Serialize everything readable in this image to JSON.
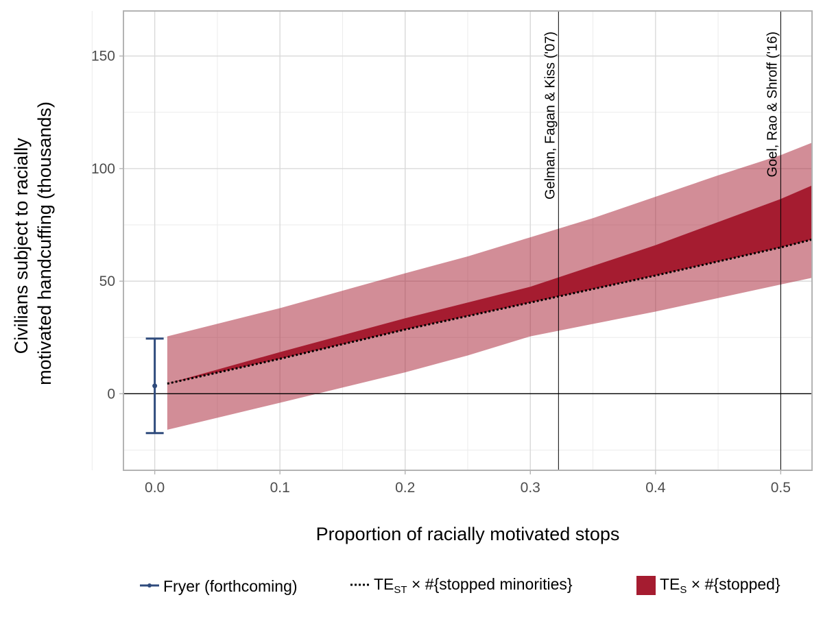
{
  "chart_data": {
    "type": "area",
    "title": "",
    "xlabel": "Proportion of racially motivated stops",
    "ylabel_lines": [
      "Civilians subject to racially",
      "motivated handcuffing (thousands)"
    ],
    "xlim": [
      -0.025,
      0.525
    ],
    "ylim": [
      -34,
      170
    ],
    "xticks": [
      0.0,
      0.1,
      0.2,
      0.3,
      0.4,
      0.5
    ],
    "xtick_labels": [
      "0.0",
      "0.1",
      "0.2",
      "0.3",
      "0.4",
      "0.5"
    ],
    "yticks": [
      0,
      50,
      100,
      150
    ],
    "ytick_labels": [
      "0",
      "50",
      "100",
      "150"
    ],
    "grid": true,
    "zero_line": 0,
    "series": [
      {
        "name": "TE_S × #{stopped}",
        "kind": "ribbon-outer",
        "color": "#a51c30",
        "opacity": 0.5,
        "x": [
          0.01,
          0.1,
          0.2,
          0.25,
          0.3,
          0.35,
          0.4,
          0.45,
          0.5,
          0.525
        ],
        "lower": [
          -16,
          -4,
          9.5,
          17,
          25.5,
          31,
          36.5,
          42.5,
          48.5,
          51.5
        ],
        "upper": [
          25.5,
          38,
          53.5,
          61,
          69.5,
          78,
          87.5,
          97,
          106,
          111.5
        ]
      },
      {
        "name": "TE_S × #{stopped}",
        "kind": "ribbon-inner",
        "color": "#a51c30",
        "opacity": 1.0,
        "x": [
          0.01,
          0.1,
          0.2,
          0.3,
          0.4,
          0.5,
          0.525
        ],
        "lower": [
          4.5,
          15.5,
          28.5,
          40.5,
          52.5,
          65,
          68.5
        ],
        "upper": [
          4.5,
          18.5,
          33.5,
          47.5,
          66,
          86.5,
          92.5
        ]
      },
      {
        "name": "TE_ST × #{stopped minorities}",
        "kind": "dotted-line",
        "color": "#000000",
        "x": [
          0.01,
          0.1,
          0.2,
          0.3,
          0.4,
          0.5,
          0.525
        ],
        "y": [
          4.5,
          15.5,
          28.5,
          40.5,
          52.5,
          65,
          68.5
        ]
      },
      {
        "name": "Fryer (forthcoming)",
        "kind": "pointrange",
        "color": "#2f4b7c",
        "x": 0.0,
        "y": 3.5,
        "ymin": -17.5,
        "ymax": 24.5
      }
    ],
    "reference_lines": [
      {
        "x": 0.3225,
        "label": "Gelman, Fagan & Kiss ('07)"
      },
      {
        "x": 0.5,
        "label": "Goel, Rao & Shroff ('16)"
      }
    ],
    "legend": {
      "position": "bottom",
      "items": [
        {
          "key": "Fryer (forthcoming)",
          "label": "Fryer (forthcoming)",
          "symbol": "pointrange",
          "color": "#2f4b7c"
        },
        {
          "key": "TE_ST",
          "label_main": "TE",
          "label_sub": "ST",
          "label_rest": " × #{stopped minorities}",
          "symbol": "dotted",
          "color": "#000000"
        },
        {
          "key": "TE_S",
          "label_main": "TE",
          "label_sub": "S",
          "label_rest": " × #{stopped}",
          "symbol": "fill",
          "color": "#a51c30"
        }
      ]
    },
    "colors": {
      "panel_border": "#b3b3b3",
      "grid_major": "#d9d9d9",
      "grid_minor": "#ebebeb",
      "ribbon": "#a51c30",
      "point": "#2f4b7c"
    }
  }
}
